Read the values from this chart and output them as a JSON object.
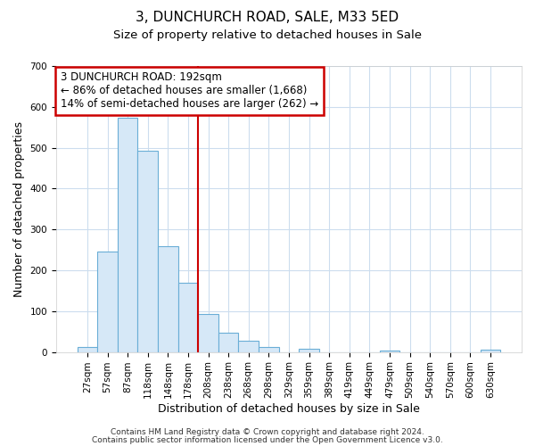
{
  "title": "3, DUNCHURCH ROAD, SALE, M33 5ED",
  "subtitle": "Size of property relative to detached houses in Sale",
  "xlabel": "Distribution of detached houses by size in Sale",
  "ylabel": "Number of detached properties",
  "bar_labels": [
    "27sqm",
    "57sqm",
    "87sqm",
    "118sqm",
    "148sqm",
    "178sqm",
    "208sqm",
    "238sqm",
    "268sqm",
    "298sqm",
    "329sqm",
    "359sqm",
    "389sqm",
    "419sqm",
    "449sqm",
    "479sqm",
    "509sqm",
    "540sqm",
    "570sqm",
    "600sqm",
    "630sqm"
  ],
  "bar_heights": [
    12,
    245,
    573,
    493,
    258,
    170,
    93,
    47,
    28,
    13,
    0,
    8,
    0,
    0,
    0,
    4,
    0,
    0,
    0,
    0,
    5
  ],
  "bar_color": "#d6e8f7",
  "bar_edge_color": "#6aaed6",
  "vline_x_idx": 5.5,
  "vline_color": "#cc0000",
  "annotation_text": "3 DUNCHURCH ROAD: 192sqm\n← 86% of detached houses are smaller (1,668)\n14% of semi-detached houses are larger (262) →",
  "annotation_box_color": "#ffffff",
  "annotation_box_edge_color": "#cc0000",
  "ylim": [
    0,
    700
  ],
  "yticks": [
    0,
    100,
    200,
    300,
    400,
    500,
    600,
    700
  ],
  "footer1": "Contains HM Land Registry data © Crown copyright and database right 2024.",
  "footer2": "Contains public sector information licensed under the Open Government Licence v3.0.",
  "bg_color": "#ffffff",
  "plot_bg_color": "#ffffff",
  "grid_color": "#ccddee",
  "title_fontsize": 11,
  "subtitle_fontsize": 9.5,
  "axis_label_fontsize": 9,
  "tick_fontsize": 7.5,
  "annotation_fontsize": 8.5,
  "footer_fontsize": 6.5
}
